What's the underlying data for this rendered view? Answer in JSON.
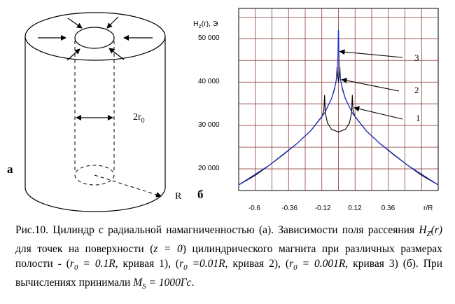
{
  "figure": {
    "panel_a_label": "а",
    "panel_b_label": "б",
    "diameter_label_main": "2r",
    "diameter_label_sub": "0",
    "radius_label": "R"
  },
  "chart_data": {
    "type": "line",
    "ylabel_main": "H",
    "ylabel_sub": "z",
    "ylabel_rest": "(r), Э",
    "xlabel": "r/R",
    "xlim": [
      -0.72,
      0.72
    ],
    "ylim": [
      15000,
      57000
    ],
    "x_ticks": [
      "-0.6",
      "-0.36",
      "-0.12",
      "0.12",
      "0.36"
    ],
    "x_tick_values": [
      -0.6,
      -0.36,
      -0.12,
      0.12,
      0.36
    ],
    "y_ticks": [
      "20 000",
      "30 000",
      "40 000",
      "50 000"
    ],
    "y_tick_values": [
      20000,
      30000,
      40000,
      50000
    ],
    "grid": true,
    "series": [
      {
        "name": "1",
        "r0": 0.1,
        "x": [
          -0.72,
          -0.6,
          -0.5,
          -0.4,
          -0.3,
          -0.2,
          -0.15,
          -0.12,
          -0.105,
          -0.1,
          -0.095,
          -0.08,
          -0.05,
          0,
          0.05,
          0.08,
          0.095,
          0.1,
          0.105,
          0.12,
          0.15,
          0.2,
          0.3,
          0.4,
          0.5,
          0.6,
          0.72
        ],
        "y": [
          16300,
          18500,
          20800,
          23200,
          25800,
          28800,
          30800,
          32000,
          33500,
          37000,
          33000,
          30600,
          29100,
          28500,
          29100,
          30600,
          33000,
          37000,
          33500,
          32000,
          30800,
          28800,
          25800,
          23200,
          20800,
          18500,
          16300
        ]
      },
      {
        "name": "2",
        "r0": 0.01,
        "x": [
          -0.72,
          -0.5,
          -0.3,
          -0.2,
          -0.1,
          -0.05,
          -0.03,
          -0.015,
          -0.01,
          -0.005,
          0,
          0.005,
          0.01,
          0.015,
          0.03,
          0.05,
          0.1,
          0.2,
          0.3,
          0.5,
          0.72
        ],
        "y": [
          16300,
          20800,
          25800,
          28800,
          32900,
          36200,
          38200,
          40500,
          43500,
          41500,
          40000,
          41500,
          43500,
          40500,
          38200,
          36200,
          32900,
          28800,
          25800,
          20800,
          16300
        ]
      },
      {
        "name": "3",
        "r0": 0.001,
        "x": [
          -0.72,
          -0.5,
          -0.3,
          -0.2,
          -0.1,
          -0.05,
          -0.02,
          -0.01,
          -0.004,
          -0.001,
          0,
          0.001,
          0.004,
          0.01,
          0.02,
          0.05,
          0.1,
          0.2,
          0.3,
          0.5,
          0.72
        ],
        "y": [
          16300,
          20800,
          25800,
          28800,
          32900,
          36200,
          39600,
          42000,
          46000,
          52000,
          49000,
          52000,
          46000,
          42000,
          39600,
          36200,
          32900,
          28800,
          25800,
          20800,
          16300
        ]
      }
    ],
    "annotations": [
      "3",
      "2",
      "1"
    ]
  },
  "caption": {
    "p1": "Рис.10. Цилиндр с радиальной намагниченностью (а). Зависимости поля рассеяния ",
    "hz_main": "H",
    "hz_sub": "Z",
    "hz_arg": "(r)",
    "p2": " для точек на поверхности (",
    "z_eq": "z = 0",
    "p3": ") цилиндрического магнита при различных размерах полости - (",
    "r0_a": "r",
    "r0_a_sub": "0",
    "r0_a_val": " = 0.1R",
    "p4": ", кривая 1), (",
    "r0_b": "r",
    "r0_b_sub": "0",
    "r0_b_val": " =0.01R",
    "p5": ", кривая 2), (",
    "r0_c": "r",
    "r0_c_sub": "0",
    "r0_c_val": " = 0.001R",
    "p6": ", кривая 3) (б). При вычислениях принимали ",
    "ms_main": "M",
    "ms_sub": "S",
    "ms_val": " = 1000Гс",
    "p7": "."
  }
}
